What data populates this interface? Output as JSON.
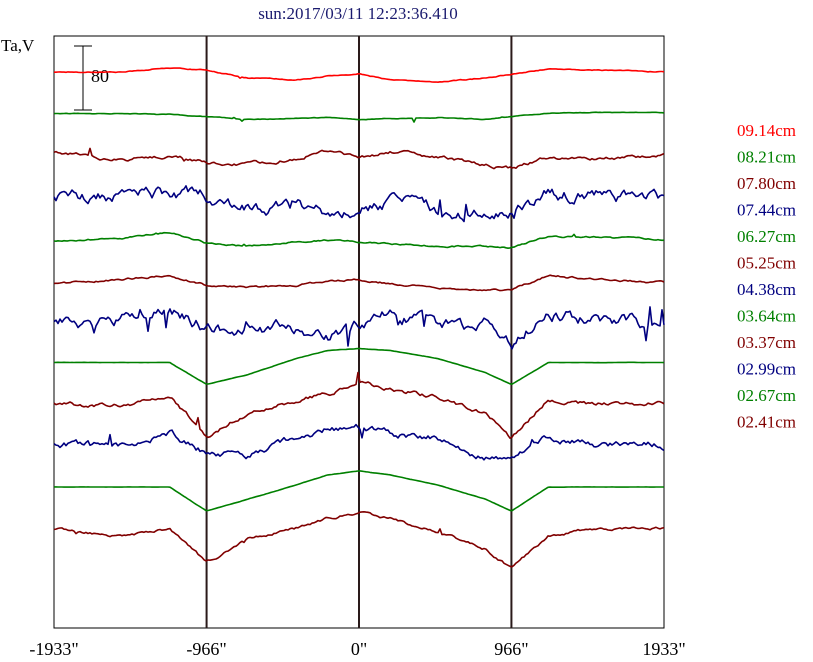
{
  "chart_data": {
    "type": "line",
    "title": "sun:2017/03/11 12:23:36.410",
    "ylabel": "Ta,V",
    "scale_bar_label": "80",
    "x_ticks": [
      "-1933\"",
      "-966\"",
      "0\"",
      "966\"",
      "1933\""
    ],
    "x_tick_values": [
      -1933,
      -966,
      0,
      966,
      1933
    ],
    "xlim": [
      -1933,
      1933
    ],
    "vlines": [
      -966,
      0,
      966
    ],
    "series": [
      {
        "name": "09.14cm",
        "color": "#ff0000",
        "shape": "flat",
        "noise": 0.2,
        "amp": 6,
        "x": [
          -1933,
          -1500,
          -1200,
          -966,
          -700,
          -400,
          -200,
          0,
          200,
          500,
          800,
          966,
          1200,
          1500,
          1933
        ],
        "y": [
          0,
          0,
          4,
          2,
          -6,
          -8,
          -4,
          -2,
          -8,
          -10,
          -6,
          -2,
          3,
          2,
          0
        ]
      },
      {
        "name": "08.21cm",
        "color": "#008000",
        "shape": "flat",
        "noise": 0.15,
        "amp": 5,
        "x": [
          -1933,
          -1500,
          -1200,
          -966,
          -700,
          -400,
          -200,
          0,
          200,
          500,
          800,
          966,
          1200,
          1500,
          1933
        ],
        "y": [
          0,
          0,
          -1,
          -3,
          -6,
          -5,
          -4,
          -6,
          -5,
          -4,
          -6,
          -3,
          0,
          1,
          1
        ]
      },
      {
        "name": "07.80cm",
        "color": "#800000",
        "shape": "flat",
        "noise": 0.45,
        "amp": 10,
        "x": [
          -1933,
          -1500,
          -1200,
          -966,
          -700,
          -400,
          -200,
          0,
          200,
          500,
          800,
          966,
          1200,
          1500,
          1933
        ],
        "y": [
          3,
          -5,
          0,
          -8,
          -10,
          -3,
          4,
          -3,
          3,
          -2,
          -10,
          -14,
          -2,
          -4,
          0
        ]
      },
      {
        "name": "07.44cm",
        "color": "#000080",
        "shape": "flat",
        "noise": 0.9,
        "amp": 18,
        "x": [
          -1933,
          -1500,
          -1200,
          -966,
          -700,
          -400,
          -200,
          0,
          200,
          500,
          800,
          966,
          1200,
          1500,
          1933
        ],
        "y": [
          0,
          0,
          4,
          0,
          -14,
          -6,
          -18,
          -10,
          -6,
          -14,
          -18,
          -16,
          3,
          1,
          -2
        ]
      },
      {
        "name": "06.27cm",
        "color": "#008000",
        "shape": "limb",
        "noise": 0.35,
        "amp": 6,
        "x": [
          -1933,
          -1500,
          -1200,
          -966,
          -700,
          -400,
          -200,
          0,
          200,
          500,
          800,
          966,
          1200,
          1500,
          1933
        ],
        "y": [
          -3,
          0,
          6,
          -5,
          -8,
          -4,
          -2,
          -4,
          -6,
          -8,
          -8,
          -10,
          2,
          1,
          -2
        ]
      },
      {
        "name": "05.25cm",
        "color": "#800000",
        "shape": "limb",
        "noise": 0.35,
        "amp": 8,
        "x": [
          -1933,
          -1500,
          -1200,
          -966,
          -700,
          -400,
          -200,
          0,
          200,
          500,
          800,
          966,
          1200,
          1500,
          1933
        ],
        "y": [
          -4,
          0,
          4,
          -6,
          -8,
          -6,
          -2,
          0,
          -4,
          -8,
          -10,
          -10,
          4,
          0,
          -3
        ]
      },
      {
        "name": "04.38cm",
        "color": "#000080",
        "shape": "limb",
        "noise": 0.9,
        "amp": 18,
        "x": [
          -1933,
          -1500,
          -1200,
          -966,
          -700,
          -400,
          -200,
          0,
          200,
          500,
          800,
          966,
          1200,
          1500,
          1933
        ],
        "y": [
          -2,
          0,
          10,
          -6,
          -10,
          -6,
          -16,
          -4,
          12,
          -8,
          -4,
          -24,
          8,
          0,
          -2
        ]
      },
      {
        "name": "03.64cm",
        "color": "#008000",
        "shape": "disk",
        "noise": 0.08,
        "amp": 4,
        "x": [
          -1933,
          -1500,
          -1200,
          -966,
          -700,
          -400,
          -200,
          0,
          200,
          500,
          800,
          966,
          1200,
          1500,
          1933
        ],
        "y": [
          0,
          0,
          0,
          -22,
          -12,
          4,
          12,
          14,
          12,
          4,
          -10,
          -22,
          0,
          0,
          0
        ]
      },
      {
        "name": "03.37cm",
        "color": "#800000",
        "shape": "disk",
        "noise": 0.55,
        "amp": 10,
        "x": [
          -1933,
          -1500,
          -1200,
          -966,
          -700,
          -400,
          -200,
          0,
          200,
          500,
          800,
          966,
          1200,
          1500,
          1933
        ],
        "y": [
          0,
          -2,
          8,
          -32,
          -8,
          4,
          10,
          20,
          16,
          6,
          -10,
          -34,
          4,
          0,
          0
        ]
      },
      {
        "name": "02.99cm",
        "color": "#000080",
        "shape": "disk",
        "noise": 0.75,
        "amp": 12,
        "x": [
          -1933,
          -1500,
          -1200,
          -966,
          -700,
          -400,
          -200,
          0,
          200,
          500,
          800,
          966,
          1200,
          1500,
          1933
        ],
        "y": [
          0,
          0,
          12,
          -8,
          -10,
          8,
          16,
          18,
          12,
          8,
          -12,
          -16,
          8,
          0,
          0
        ]
      },
      {
        "name": "02.67cm",
        "color": "#008000",
        "shape": "disk",
        "noise": 0.08,
        "amp": 4,
        "x": [
          -1933,
          -1500,
          -1200,
          -966,
          -700,
          -400,
          -200,
          0,
          200,
          500,
          800,
          966,
          1200,
          1500,
          1933
        ],
        "y": [
          0,
          0,
          0,
          -24,
          -12,
          2,
          12,
          16,
          12,
          2,
          -12,
          -24,
          0,
          0,
          0
        ]
      },
      {
        "name": "02.41cm",
        "color": "#800000",
        "shape": "disk",
        "noise": 0.45,
        "amp": 8,
        "x": [
          -1933,
          -1500,
          -1200,
          -966,
          -700,
          -400,
          -200,
          0,
          200,
          500,
          800,
          966,
          1200,
          1500,
          1933
        ],
        "y": [
          0,
          -8,
          0,
          -34,
          -10,
          0,
          10,
          16,
          10,
          -4,
          -20,
          -40,
          -8,
          0,
          0
        ]
      }
    ]
  }
}
